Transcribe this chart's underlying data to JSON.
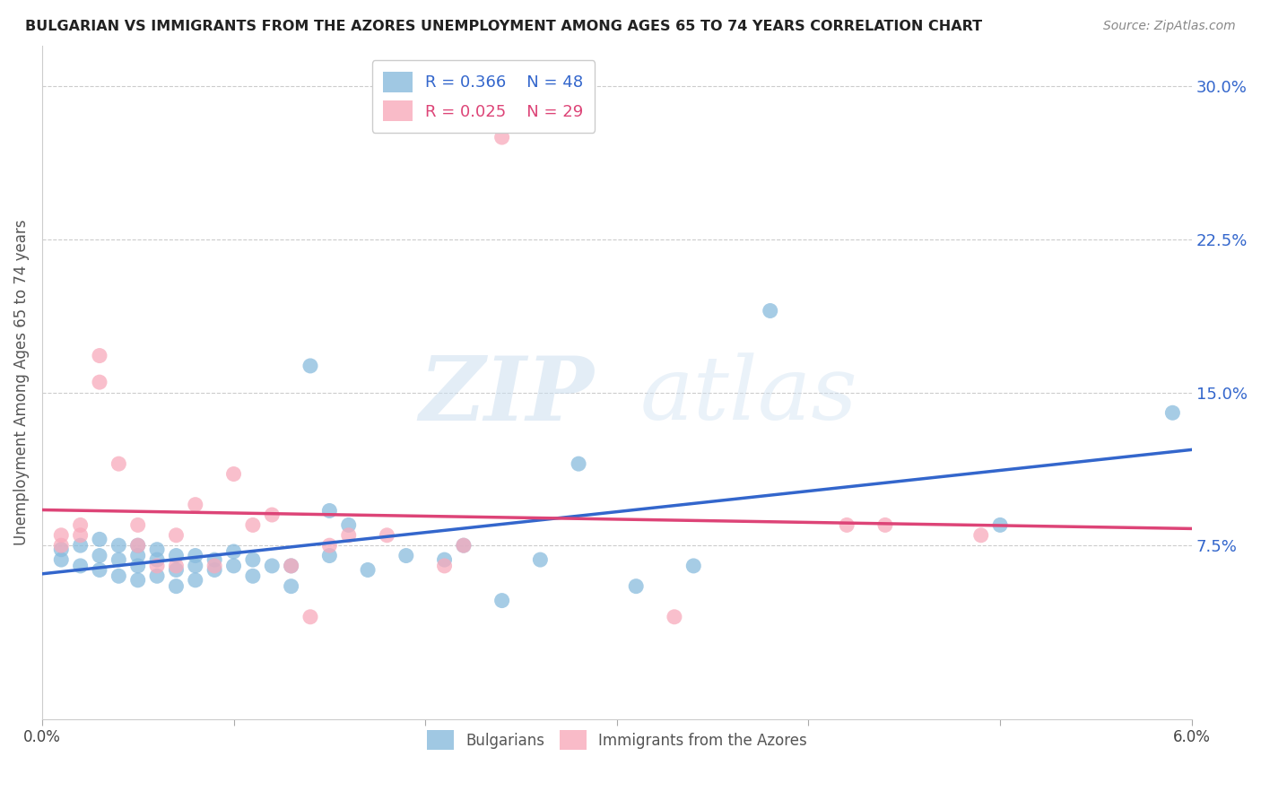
{
  "title": "BULGARIAN VS IMMIGRANTS FROM THE AZORES UNEMPLOYMENT AMONG AGES 65 TO 74 YEARS CORRELATION CHART",
  "source": "Source: ZipAtlas.com",
  "ylabel": "Unemployment Among Ages 65 to 74 years",
  "xlim": [
    0.0,
    0.06
  ],
  "ylim": [
    -0.01,
    0.32
  ],
  "yticks_right": [
    0.075,
    0.15,
    0.225,
    0.3
  ],
  "yticklabels_right": [
    "7.5%",
    "15.0%",
    "22.5%",
    "30.0%"
  ],
  "grid_color": "#cccccc",
  "background_color": "#ffffff",
  "blue_color": "#88bbdd",
  "pink_color": "#f8aabb",
  "blue_line_color": "#3366cc",
  "pink_line_color": "#dd4477",
  "watermark_zip": "ZIP",
  "watermark_atlas": "atlas",
  "legend_R_blue": "R = 0.366",
  "legend_N_blue": "N = 48",
  "legend_R_pink": "R = 0.025",
  "legend_N_pink": "N = 29",
  "blue_x": [
    0.001,
    0.001,
    0.002,
    0.002,
    0.003,
    0.003,
    0.003,
    0.004,
    0.004,
    0.004,
    0.005,
    0.005,
    0.005,
    0.005,
    0.006,
    0.006,
    0.006,
    0.007,
    0.007,
    0.007,
    0.008,
    0.008,
    0.008,
    0.009,
    0.009,
    0.01,
    0.01,
    0.011,
    0.011,
    0.012,
    0.013,
    0.013,
    0.014,
    0.015,
    0.015,
    0.016,
    0.017,
    0.019,
    0.021,
    0.022,
    0.024,
    0.026,
    0.028,
    0.031,
    0.034,
    0.038,
    0.05,
    0.059
  ],
  "blue_y": [
    0.068,
    0.073,
    0.065,
    0.075,
    0.063,
    0.07,
    0.078,
    0.06,
    0.068,
    0.075,
    0.058,
    0.065,
    0.07,
    0.075,
    0.06,
    0.068,
    0.073,
    0.055,
    0.063,
    0.07,
    0.058,
    0.065,
    0.07,
    0.063,
    0.068,
    0.065,
    0.072,
    0.06,
    0.068,
    0.065,
    0.055,
    0.065,
    0.163,
    0.092,
    0.07,
    0.085,
    0.063,
    0.07,
    0.068,
    0.075,
    0.048,
    0.068,
    0.115,
    0.055,
    0.065,
    0.19,
    0.085,
    0.14
  ],
  "pink_x": [
    0.001,
    0.001,
    0.002,
    0.002,
    0.003,
    0.003,
    0.004,
    0.005,
    0.005,
    0.006,
    0.007,
    0.007,
    0.008,
    0.009,
    0.01,
    0.011,
    0.012,
    0.013,
    0.014,
    0.015,
    0.016,
    0.018,
    0.021,
    0.022,
    0.024,
    0.033,
    0.042,
    0.044,
    0.049
  ],
  "pink_y": [
    0.075,
    0.08,
    0.08,
    0.085,
    0.155,
    0.168,
    0.115,
    0.075,
    0.085,
    0.065,
    0.065,
    0.08,
    0.095,
    0.065,
    0.11,
    0.085,
    0.09,
    0.065,
    0.04,
    0.075,
    0.08,
    0.08,
    0.065,
    0.075,
    0.275,
    0.04,
    0.085,
    0.085,
    0.08
  ]
}
